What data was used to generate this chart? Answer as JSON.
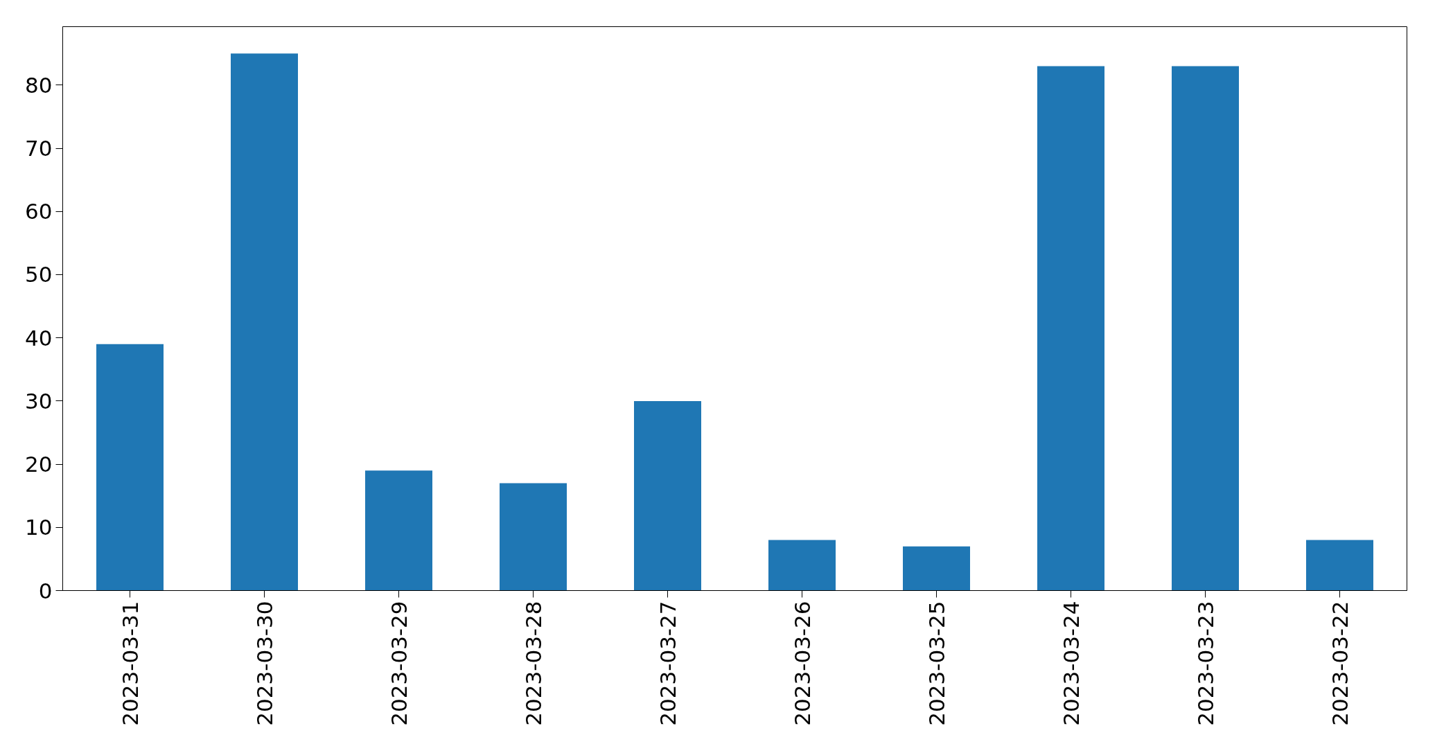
{
  "chart_data": {
    "type": "bar",
    "categories": [
      "2023-03-31",
      "2023-03-30",
      "2023-03-29",
      "2023-03-28",
      "2023-03-27",
      "2023-03-26",
      "2023-03-25",
      "2023-03-24",
      "2023-03-23",
      "2023-03-22"
    ],
    "values": [
      39,
      85,
      19,
      17,
      30,
      8,
      7,
      83,
      83,
      8
    ],
    "color": "#1f77b4",
    "ylim": [
      0,
      89.25
    ],
    "yticks": [
      0,
      10,
      20,
      30,
      40,
      50,
      60,
      70,
      80
    ],
    "grid": false
  }
}
